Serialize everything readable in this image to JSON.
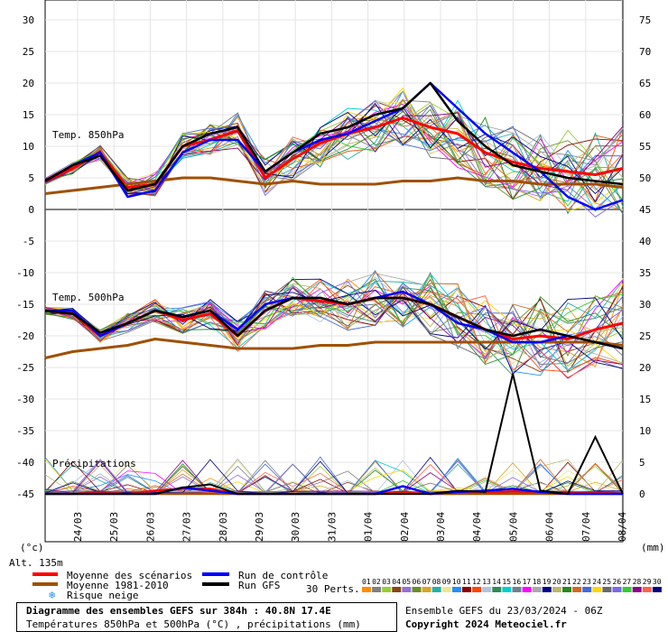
{
  "chart_data": {
    "type": "line",
    "left_axis": {
      "unit": "(°c)",
      "ticks": [
        30,
        25,
        20,
        15,
        10,
        5,
        0,
        -5,
        -10,
        -15,
        -20,
        -25,
        -30,
        -35,
        -40,
        -45
      ]
    },
    "right_axis": {
      "unit": "(mm)",
      "ticks": [
        75,
        70,
        65,
        60,
        55,
        50,
        45,
        40,
        35,
        30,
        25,
        20,
        15,
        10,
        5,
        0
      ]
    },
    "altitude": "Alt. 135m",
    "x_ticks": [
      "24/03",
      "25/03",
      "26/03",
      "27/03",
      "28/03",
      "29/03",
      "30/03",
      "31/03",
      "01/04",
      "02/04",
      "03/04",
      "04/04",
      "05/04",
      "06/04",
      "07/04",
      "08/04"
    ],
    "panel_labels": {
      "t850": "Temp. 850hPa",
      "t500": "Temp. 500hPa",
      "precip": "Précipitations"
    },
    "series": [
      {
        "name": "Moyenne des scénarios",
        "color": "#ff0000",
        "t850": [
          4.5,
          6.5,
          9,
          3.5,
          4,
          10,
          11,
          12.5,
          5,
          8,
          10.5,
          12,
          13,
          14.5,
          13,
          12,
          9,
          7.5,
          6.5,
          6,
          5.5,
          6.5
        ],
        "t500": [
          -16,
          -16.5,
          -20,
          -18,
          -16,
          -17.5,
          -16.5,
          -20,
          -16,
          -14,
          -14.5,
          -15,
          -14,
          -14,
          -15,
          -17,
          -19,
          -20.5,
          -20,
          -20.5,
          -19,
          -18
        ],
        "precip": [
          0,
          0,
          0.3,
          0,
          0.5,
          0.8,
          0.8,
          0,
          0,
          0,
          0,
          0,
          0,
          0.2,
          0,
          0.3,
          0.2,
          0.4,
          0.3,
          0.2,
          0.2,
          0
        ]
      },
      {
        "name": "Moyenne 1981-2010",
        "color": "#a05000",
        "t850": [
          2.5,
          3,
          3.5,
          4,
          4.5,
          5,
          5,
          4.5,
          4,
          4.5,
          4,
          4,
          4,
          4.5,
          4.5,
          5,
          4.5,
          4.5,
          4,
          4,
          4,
          3.5
        ],
        "t500": [
          -23.5,
          -22.5,
          -22,
          -21.5,
          -20.5,
          -21,
          -21.5,
          -22,
          -22,
          -22,
          -21.5,
          -21.5,
          -21,
          -21,
          -21,
          -21,
          -21,
          -21,
          -21,
          -21,
          -21,
          -21.5
        ],
        "precip": [
          0,
          0,
          0,
          0,
          0,
          0,
          0,
          0,
          0,
          0,
          0,
          0,
          0,
          0,
          0,
          0,
          0,
          0,
          0,
          0,
          0,
          0
        ]
      },
      {
        "name": "Run de contrôle",
        "color": "#0000ff",
        "t850": [
          4.5,
          7,
          9,
          2,
          3,
          9,
          11,
          11,
          6,
          9,
          11,
          12,
          14,
          16,
          20,
          16,
          12,
          9,
          6,
          2,
          0,
          1.5
        ],
        "t500": [
          -16,
          -16,
          -20,
          -18,
          -16,
          -17,
          -16,
          -19,
          -15,
          -14,
          -14,
          -15,
          -14,
          -13,
          -15,
          -18,
          -19,
          -21,
          -21,
          -20,
          -21,
          -22
        ],
        "precip": [
          0,
          0,
          0,
          0,
          0,
          1,
          0.5,
          0,
          0,
          0,
          0,
          0,
          0,
          1.2,
          0,
          0.3,
          0.5,
          0.8,
          0.3,
          0,
          0,
          0
        ]
      },
      {
        "name": "Run GFS",
        "color": "#000000",
        "t850": [
          4.5,
          7,
          8.5,
          3,
          4,
          10,
          12,
          13,
          6,
          9,
          12,
          13,
          15,
          16,
          20,
          14,
          10,
          7,
          6,
          5,
          4.5,
          4
        ],
        "t500": [
          -16,
          -16.5,
          -19.5,
          -18,
          -16,
          -17,
          -16,
          -20,
          -16,
          -14,
          -14,
          -15,
          -14,
          -14,
          -15,
          -17,
          -19,
          -20,
          -19,
          -20,
          -21,
          -22
        ],
        "precip": [
          0,
          0,
          0,
          0,
          0,
          1,
          1.5,
          0,
          0,
          0,
          0,
          0,
          0,
          0,
          0,
          0.5,
          0.3,
          19,
          0.5,
          0,
          9,
          0
        ]
      }
    ]
  },
  "legend": {
    "items": [
      {
        "label": "Moyenne des scénarios",
        "color": "#ff0000"
      },
      {
        "label": "Moyenne 1981-2010",
        "color": "#a05000"
      },
      {
        "label": "Run de contrôle",
        "color": "#0000ff"
      },
      {
        "label": "Run GFS",
        "color": "#000000"
      }
    ],
    "snow_label": "Risque neige",
    "snow_icon": "snowflake-icon",
    "perts_label": "30 Perts.",
    "perts_numbers": [
      "01",
      "02",
      "03",
      "04",
      "05",
      "06",
      "07",
      "08",
      "09",
      "10",
      "11",
      "12",
      "13",
      "14",
      "15",
      "16",
      "17",
      "18",
      "19",
      "20",
      "21",
      "22",
      "23",
      "24",
      "25",
      "26",
      "27",
      "28",
      "29",
      "30"
    ],
    "perts_colors": [
      "#ff8c00",
      "#808080",
      "#9acd32",
      "#8b4513",
      "#9370db",
      "#6b8e23",
      "#daa520",
      "#20b2aa",
      "#f0e68c",
      "#1e90ff",
      "#8b0000",
      "#ff4500",
      "#b0c4de",
      "#2e8b57",
      "#00ced1",
      "#708090",
      "#ff00ff",
      "#a9a9a9",
      "#00008b",
      "#bdb76b",
      "#228b22",
      "#d2691e",
      "#4169e1",
      "#ffd700",
      "#696969",
      "#7b68ee",
      "#32cd32",
      "#8b008b",
      "#ff6347",
      "#000080"
    ]
  },
  "footer": {
    "title": "Diagramme des ensembles GEFS sur 384h : 40.8N 17.4E",
    "subtitle": "Températures 850hPa et 500hPa (°C) , précipitations (mm)",
    "run_info": "Ensemble GEFS du 23/03/2024 - 06Z",
    "copyright": "Copyright 2024 Meteociel.fr"
  }
}
